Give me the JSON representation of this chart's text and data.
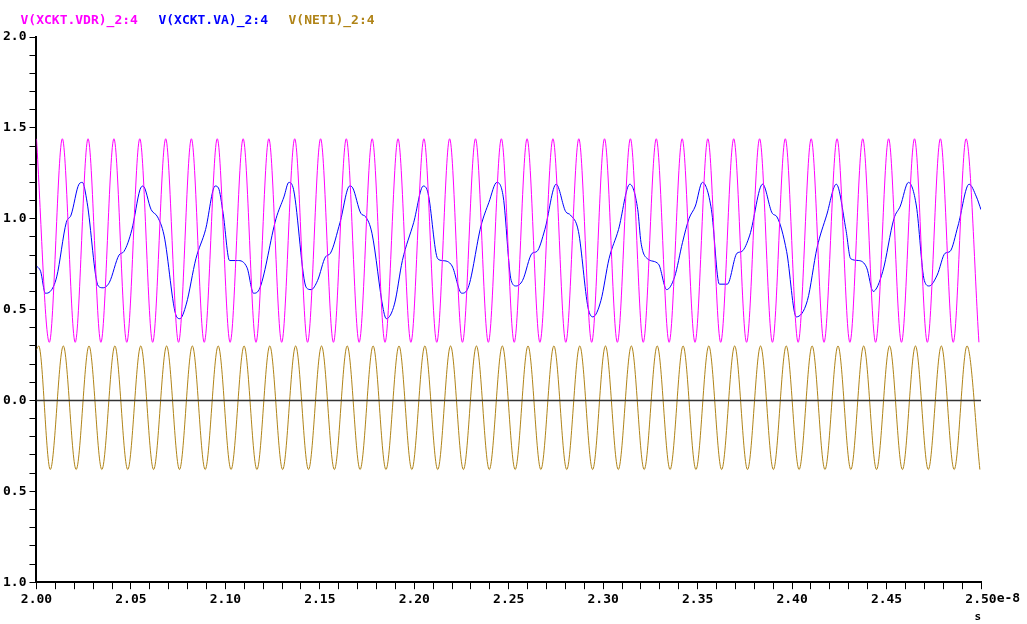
{
  "chart_data": {
    "type": "line",
    "legend": "top left",
    "grid": false,
    "marker": "none",
    "line_style": "solid",
    "xlabel": "s",
    "xlim": [
      2.0,
      2.5
    ],
    "xticks": [
      {
        "value": 2.0,
        "label": "2.00"
      },
      {
        "value": 2.01,
        "label": null
      },
      {
        "value": 2.02,
        "label": null
      },
      {
        "value": 2.03,
        "label": null
      },
      {
        "value": 2.04,
        "label": null
      },
      {
        "value": 2.05,
        "label": "2.05"
      },
      {
        "value": 2.06,
        "label": null
      },
      {
        "value": 2.07,
        "label": null
      },
      {
        "value": 2.08,
        "label": null
      },
      {
        "value": 2.09,
        "label": null
      },
      {
        "value": 2.1,
        "label": "2.10"
      },
      {
        "value": 2.11,
        "label": null
      },
      {
        "value": 2.12,
        "label": null
      },
      {
        "value": 2.13,
        "label": null
      },
      {
        "value": 2.14,
        "label": null
      },
      {
        "value": 2.15,
        "label": "2.15"
      },
      {
        "value": 2.16,
        "label": null
      },
      {
        "value": 2.17,
        "label": null
      },
      {
        "value": 2.18,
        "label": null
      },
      {
        "value": 2.19,
        "label": null
      },
      {
        "value": 2.2,
        "label": "2.20"
      },
      {
        "value": 2.21,
        "label": null
      },
      {
        "value": 2.22,
        "label": null
      },
      {
        "value": 2.23,
        "label": null
      },
      {
        "value": 2.24,
        "label": null
      },
      {
        "value": 2.25,
        "label": "2.25"
      },
      {
        "value": 2.26,
        "label": null
      },
      {
        "value": 2.27,
        "label": null
      },
      {
        "value": 2.28,
        "label": null
      },
      {
        "value": 2.29,
        "label": null
      },
      {
        "value": 2.3,
        "label": "2.30"
      },
      {
        "value": 2.31,
        "label": null
      },
      {
        "value": 2.32,
        "label": null
      },
      {
        "value": 2.33,
        "label": null
      },
      {
        "value": 2.34,
        "label": null
      },
      {
        "value": 2.35,
        "label": "2.35"
      },
      {
        "value": 2.36,
        "label": null
      },
      {
        "value": 2.37,
        "label": null
      },
      {
        "value": 2.38,
        "label": null
      },
      {
        "value": 2.39,
        "label": null
      },
      {
        "value": 2.4,
        "label": "2.40"
      },
      {
        "value": 2.41,
        "label": null
      },
      {
        "value": 2.42,
        "label": null
      },
      {
        "value": 2.43,
        "label": null
      },
      {
        "value": 2.44,
        "label": null
      },
      {
        "value": 2.45,
        "label": "2.45"
      },
      {
        "value": 2.46,
        "label": null
      },
      {
        "value": 2.47,
        "label": null
      },
      {
        "value": 2.48,
        "label": null
      },
      {
        "value": 2.49,
        "label": null
      },
      {
        "value": 2.5,
        "label": "2.50"
      }
    ],
    "annotations": [
      "e-8"
    ],
    "ylim": [
      -1.0,
      2.0
    ],
    "yticks": [
      {
        "value": -1.0,
        "label": "1.0"
      },
      {
        "value": -0.9,
        "label": null
      },
      {
        "value": -0.8,
        "label": null
      },
      {
        "value": -0.7,
        "label": null
      },
      {
        "value": -0.6,
        "label": null
      },
      {
        "value": -0.5,
        "label": "0.5"
      },
      {
        "value": -0.4,
        "label": null
      },
      {
        "value": -0.3,
        "label": null
      },
      {
        "value": -0.2,
        "label": null
      },
      {
        "value": -0.1,
        "label": null
      },
      {
        "value": 0,
        "label": "0.0"
      },
      {
        "value": 0.1,
        "label": null
      },
      {
        "value": 0.2,
        "label": null
      },
      {
        "value": 0.3,
        "label": null
      },
      {
        "value": 0.4,
        "label": null
      },
      {
        "value": 0.5,
        "label": "0.5"
      },
      {
        "value": 0.6,
        "label": null
      },
      {
        "value": 0.7,
        "label": null
      },
      {
        "value": 0.8,
        "label": null
      },
      {
        "value": 0.9,
        "label": null
      },
      {
        "value": 1.0,
        "label": "1.0"
      },
      {
        "value": 1.1,
        "label": null
      },
      {
        "value": 1.2,
        "label": null
      },
      {
        "value": 1.3,
        "label": null
      },
      {
        "value": 1.4,
        "label": null
      },
      {
        "value": 1.5,
        "label": "1.5"
      },
      {
        "value": 1.6,
        "label": null
      },
      {
        "value": 1.7,
        "label": null
      },
      {
        "value": 1.8,
        "label": null
      },
      {
        "value": 1.9,
        "label": null
      },
      {
        "value": 2.0,
        "label": "2.0"
      }
    ],
    "ref_lines": [
      {
        "axis": "y",
        "value": 0,
        "color": "#333333"
      }
    ],
    "series": [
      {
        "name": "V(XCKT.VDR)_2:4",
        "color": "#ff00ff",
        "x": [
          2.0,
          2.0068,
          2.0137,
          2.0205,
          2.0273,
          2.0341,
          2.041,
          2.0478,
          2.0547,
          2.0615,
          2.0684,
          2.0752,
          2.082,
          2.0888,
          2.0957,
          2.1025,
          2.1094,
          2.1162,
          2.123,
          2.1298,
          2.1367,
          2.1435,
          2.1504,
          2.1572,
          2.164,
          2.1708,
          2.1777,
          2.1845,
          2.1914,
          2.1982,
          2.2051,
          2.2119,
          2.2187,
          2.2255,
          2.2324,
          2.2392,
          2.2461,
          2.2529,
          2.2597,
          2.2665,
          2.2734,
          2.2802,
          2.2871,
          2.2939,
          2.3007,
          2.3075,
          2.3144,
          2.3212,
          2.3281,
          2.3349,
          2.3418,
          2.3486,
          2.3554,
          2.3622,
          2.3691,
          2.3759,
          2.3828,
          2.3896,
          2.3964,
          2.4032,
          2.4101,
          2.4169,
          2.4238,
          2.4306,
          2.4374,
          2.4442,
          2.4511,
          2.4579,
          2.4648,
          2.4716,
          2.4785,
          2.4853,
          2.4921,
          2.4989
        ],
        "values": [
          1.44,
          0.32,
          1.44,
          0.32,
          1.44,
          0.32,
          1.44,
          0.32,
          1.44,
          0.32,
          1.44,
          0.32,
          1.44,
          0.32,
          1.44,
          0.32,
          1.44,
          0.32,
          1.44,
          0.32,
          1.44,
          0.32,
          1.44,
          0.32,
          1.44,
          0.32,
          1.44,
          0.32,
          1.44,
          0.32,
          1.44,
          0.32,
          1.44,
          0.32,
          1.44,
          0.32,
          1.44,
          0.32,
          1.44,
          0.32,
          1.44,
          0.32,
          1.44,
          0.32,
          1.44,
          0.32,
          1.44,
          0.32,
          1.44,
          0.32,
          1.44,
          0.32,
          1.44,
          0.32,
          1.44,
          0.32,
          1.44,
          0.32,
          1.44,
          0.32,
          1.44,
          0.32,
          1.44,
          0.32,
          1.44,
          0.32,
          1.44,
          0.32,
          1.44,
          0.32,
          1.44,
          0.32,
          1.44,
          0.32
        ]
      },
      {
        "name": "V(XCKT.VA)_2:4",
        "color": "#0000ff",
        "x": [
          2.0,
          2.0022,
          2.0047,
          2.0073,
          2.0107,
          2.0158,
          2.0183,
          2.0225,
          2.0243,
          2.0268,
          2.0327,
          2.0352,
          2.0386,
          2.0437,
          2.0463,
          2.0505,
          2.0548,
          2.0564,
          2.0607,
          2.0641,
          2.0675,
          2.0742,
          2.0759,
          2.0793,
          2.0844,
          2.0895,
          2.0946,
          2.0963,
          2.0988,
          2.1022,
          2.1064,
          2.1115,
          2.1149,
          2.1183,
          2.1268,
          2.131,
          2.1336,
          2.1361,
          2.1429,
          2.1454,
          2.1488,
          2.153,
          2.1556,
          2.1607,
          2.1658,
          2.1674,
          2.1717,
          2.1743,
          2.1776,
          2.1836,
          2.1852,
          2.1895,
          2.1937,
          2.1997,
          2.2048,
          2.2073,
          2.2124,
          2.2149,
          2.22,
          2.2251,
          2.2285,
          2.2353,
          2.2395,
          2.2437,
          2.2471,
          2.2513,
          2.2539,
          2.2573,
          2.2624,
          2.2649,
          2.2691,
          2.2751,
          2.2801,
          2.2827,
          2.2869,
          2.292,
          2.2946,
          2.2988,
          2.3031,
          2.3081,
          2.3141,
          2.3183,
          2.32,
          2.3234,
          2.3293,
          2.3336,
          2.3378,
          2.342,
          2.3454,
          2.3488,
          2.3525,
          2.3573,
          2.3615,
          2.3657,
          2.3708,
          2.3734,
          2.3776,
          2.3844,
          2.3895,
          2.392,
          2.3971,
          2.4022,
          2.4081,
          2.4132,
          2.4183,
          2.4234,
          2.4285,
          2.431,
          2.4353,
          2.4395,
          2.4429,
          2.448,
          2.4539,
          2.4573,
          2.4616,
          2.4658,
          2.47,
          2.4726,
          2.4768,
          2.481,
          2.4836,
          2.4878,
          2.4937,
          2.4976,
          2.5
        ],
        "values": [
          0.74,
          0.71,
          0.59,
          0.6,
          0.68,
          0.98,
          1.02,
          1.19,
          1.2,
          1.09,
          0.63,
          0.62,
          0.65,
          0.8,
          0.82,
          0.94,
          1.16,
          1.18,
          1.05,
          1.01,
          0.91,
          0.46,
          0.45,
          0.53,
          0.78,
          0.94,
          1.18,
          1.17,
          1.03,
          0.77,
          0.77,
          0.73,
          0.59,
          0.62,
          1.0,
          1.12,
          1.2,
          1.16,
          0.62,
          0.61,
          0.66,
          0.79,
          0.81,
          0.98,
          1.18,
          1.17,
          1.03,
          1.01,
          0.92,
          0.5,
          0.45,
          0.53,
          0.77,
          0.98,
          1.18,
          1.14,
          0.78,
          0.77,
          0.74,
          0.59,
          0.62,
          0.96,
          1.09,
          1.2,
          1.12,
          0.66,
          0.63,
          0.66,
          0.81,
          0.82,
          0.94,
          1.19,
          1.04,
          1.02,
          0.93,
          0.51,
          0.46,
          0.55,
          0.78,
          0.94,
          1.19,
          1.05,
          0.87,
          0.78,
          0.75,
          0.61,
          0.68,
          0.87,
          1.0,
          1.07,
          1.2,
          1.05,
          0.64,
          0.64,
          0.81,
          0.82,
          0.91,
          1.19,
          1.03,
          1.01,
          0.82,
          0.46,
          0.55,
          0.84,
          1.02,
          1.19,
          0.94,
          0.78,
          0.77,
          0.73,
          0.6,
          0.71,
          1.0,
          1.07,
          1.2,
          1.07,
          0.66,
          0.63,
          0.69,
          0.81,
          0.82,
          0.96,
          1.19,
          1.12,
          1.05
        ]
      },
      {
        "name": "V(NET1)_2:4",
        "color": "#b08418",
        "x": [
          2.0,
          2.0012,
          2.0073,
          2.0142,
          2.021,
          2.0278,
          2.0346,
          2.0415,
          2.0483,
          2.0552,
          2.062,
          2.0689,
          2.0757,
          2.0825,
          2.0893,
          2.0962,
          2.103,
          2.1099,
          2.1167,
          2.1235,
          2.1303,
          2.1372,
          2.144,
          2.1509,
          2.1577,
          2.1645,
          2.1713,
          2.1782,
          2.185,
          2.1919,
          2.1987,
          2.2056,
          2.2124,
          2.2192,
          2.226,
          2.2329,
          2.2397,
          2.2466,
          2.2534,
          2.2602,
          2.267,
          2.2739,
          2.2807,
          2.2876,
          2.2944,
          2.3012,
          2.308,
          2.3149,
          2.3217,
          2.3286,
          2.3354,
          2.3423,
          2.3491,
          2.3559,
          2.3627,
          2.3696,
          2.3764,
          2.3833,
          2.3901,
          2.3969,
          2.4037,
          2.4106,
          2.4174,
          2.4243,
          2.4311,
          2.4379,
          2.4447,
          2.4516,
          2.4584,
          2.4653,
          2.4721,
          2.479,
          2.4858,
          2.4926,
          2.4994
        ],
        "values": [
          0.28,
          0.3,
          -0.38,
          0.3,
          -0.38,
          0.3,
          -0.38,
          0.3,
          -0.38,
          0.3,
          -0.38,
          0.3,
          -0.38,
          0.3,
          -0.38,
          0.3,
          -0.38,
          0.3,
          -0.38,
          0.3,
          -0.38,
          0.3,
          -0.38,
          0.3,
          -0.38,
          0.3,
          -0.38,
          0.3,
          -0.38,
          0.3,
          -0.38,
          0.3,
          -0.38,
          0.3,
          -0.38,
          0.3,
          -0.38,
          0.3,
          -0.38,
          0.3,
          -0.38,
          0.3,
          -0.38,
          0.3,
          -0.38,
          0.3,
          -0.38,
          0.3,
          -0.38,
          0.3,
          -0.38,
          0.3,
          -0.38,
          0.3,
          -0.38,
          0.3,
          -0.38,
          0.3,
          -0.38,
          0.3,
          -0.38,
          0.3,
          -0.38,
          0.3,
          -0.38,
          0.3,
          -0.38,
          0.3,
          -0.38,
          0.3,
          -0.38,
          0.3,
          -0.38,
          0.3,
          -0.38
        ]
      }
    ]
  }
}
